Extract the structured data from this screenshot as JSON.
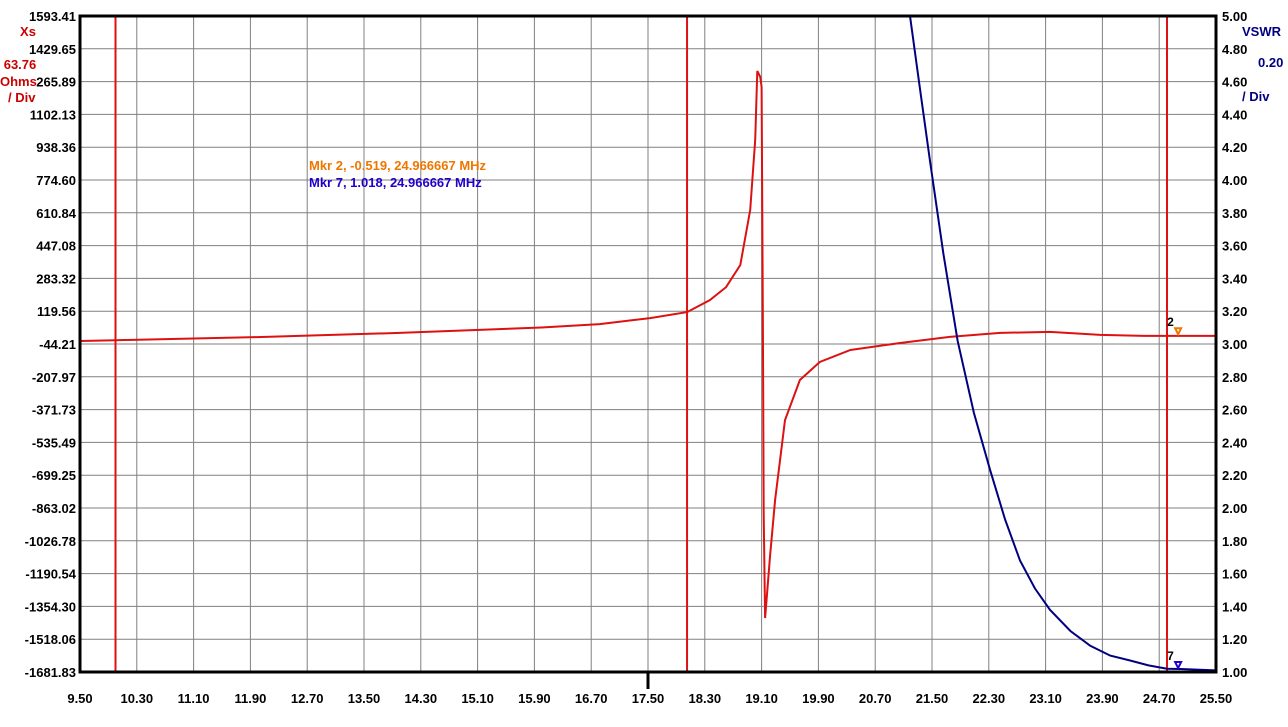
{
  "chart_data": {
    "type": "line",
    "x_ticks": [
      "9.50",
      "10.30",
      "11.10",
      "11.90",
      "12.70",
      "13.50",
      "14.30",
      "15.10",
      "15.90",
      "16.70",
      "17.50",
      "18.30",
      "19.10",
      "19.90",
      "20.70",
      "21.50",
      "22.30",
      "23.10",
      "23.90",
      "24.70",
      "25.50"
    ],
    "xlim": [
      9.5,
      25.5
    ],
    "left_axis": {
      "label": "Xs",
      "scale": "63.76",
      "unit": "Ohms",
      "per_div": "/ Div",
      "ylim": [
        -1681.83,
        1593.41
      ],
      "ticks": [
        "1593.41",
        "1429.65",
        "1265.89",
        "1102.13",
        "938.36",
        "774.60",
        "610.84",
        "447.08",
        "283.32",
        "119.56",
        "-44.21",
        "-207.97",
        "-371.73",
        "-535.49",
        "-699.25",
        "-863.02",
        "-1026.78",
        "-1190.54",
        "-1354.30",
        "-1518.06",
        "-1681.83"
      ],
      "color": "#cc0000"
    },
    "right_axis": {
      "label": "VSWR",
      "scale": "0.20",
      "per_div": "/ Div",
      "ylim": [
        1.0,
        5.0
      ],
      "ticks": [
        "5.00",
        "4.80",
        "4.60",
        "4.40",
        "4.20",
        "4.00",
        "3.80",
        "3.60",
        "3.40",
        "3.20",
        "3.00",
        "2.80",
        "2.60",
        "2.40",
        "2.20",
        "2.00",
        "1.80",
        "1.60",
        "1.40",
        "1.20",
        "1.00"
      ],
      "color": "#000080"
    },
    "grid": true,
    "series": [
      {
        "name": "Xs",
        "axis": "left",
        "color": "#dd1111",
        "x": [
          9.5,
          10.0,
          12.0,
          14.0,
          16.0,
          16.82,
          17.53,
          18.05,
          18.37,
          18.6,
          18.8,
          18.94,
          19.01,
          19.04,
          19.08,
          19.1,
          19.11,
          19.12,
          19.13,
          19.15,
          19.22,
          19.29,
          19.43,
          19.64,
          19.92,
          20.35,
          21.05,
          21.75,
          22.46,
          23.16,
          23.87,
          24.5,
          25.5
        ],
        "y": [
          -29,
          -25,
          -10,
          11,
          38,
          55,
          85,
          115,
          175,
          240,
          350,
          625,
          974,
          1319,
          1290,
          1239,
          600,
          -74,
          -900,
          -1412,
          -1100,
          -823,
          -424,
          -224,
          -134,
          -74,
          -39,
          -9,
          11,
          16,
          1,
          -4,
          -4
        ]
      },
      {
        "name": "VSWR",
        "axis": "right",
        "color": "#000080",
        "x": [
          21.19,
          21.33,
          21.47,
          21.66,
          21.86,
          22.09,
          22.32,
          22.53,
          22.74,
          22.95,
          23.16,
          23.45,
          23.73,
          24.01,
          24.29,
          24.55,
          24.81,
          25.0,
          25.5
        ],
        "y": [
          5.0,
          4.56,
          4.12,
          3.55,
          3.02,
          2.58,
          2.23,
          1.93,
          1.68,
          1.51,
          1.38,
          1.25,
          1.16,
          1.1,
          1.07,
          1.04,
          1.02,
          1.018,
          1.01
        ]
      }
    ],
    "vertical_lines": [
      10.0,
      18.05,
      24.81
    ],
    "center_marker": 17.5,
    "markers": [
      {
        "id": "2",
        "x": 24.966667,
        "value": -0.519,
        "axis": "left",
        "color": "#ee7700",
        "text": "Mkr 2, -0.519, 24.966667 MHz"
      },
      {
        "id": "7",
        "x": 24.966667,
        "value": 1.018,
        "axis": "right",
        "color": "#2200cc",
        "text": "Mkr 7, 1.018, 24.966667 MHz"
      }
    ]
  }
}
